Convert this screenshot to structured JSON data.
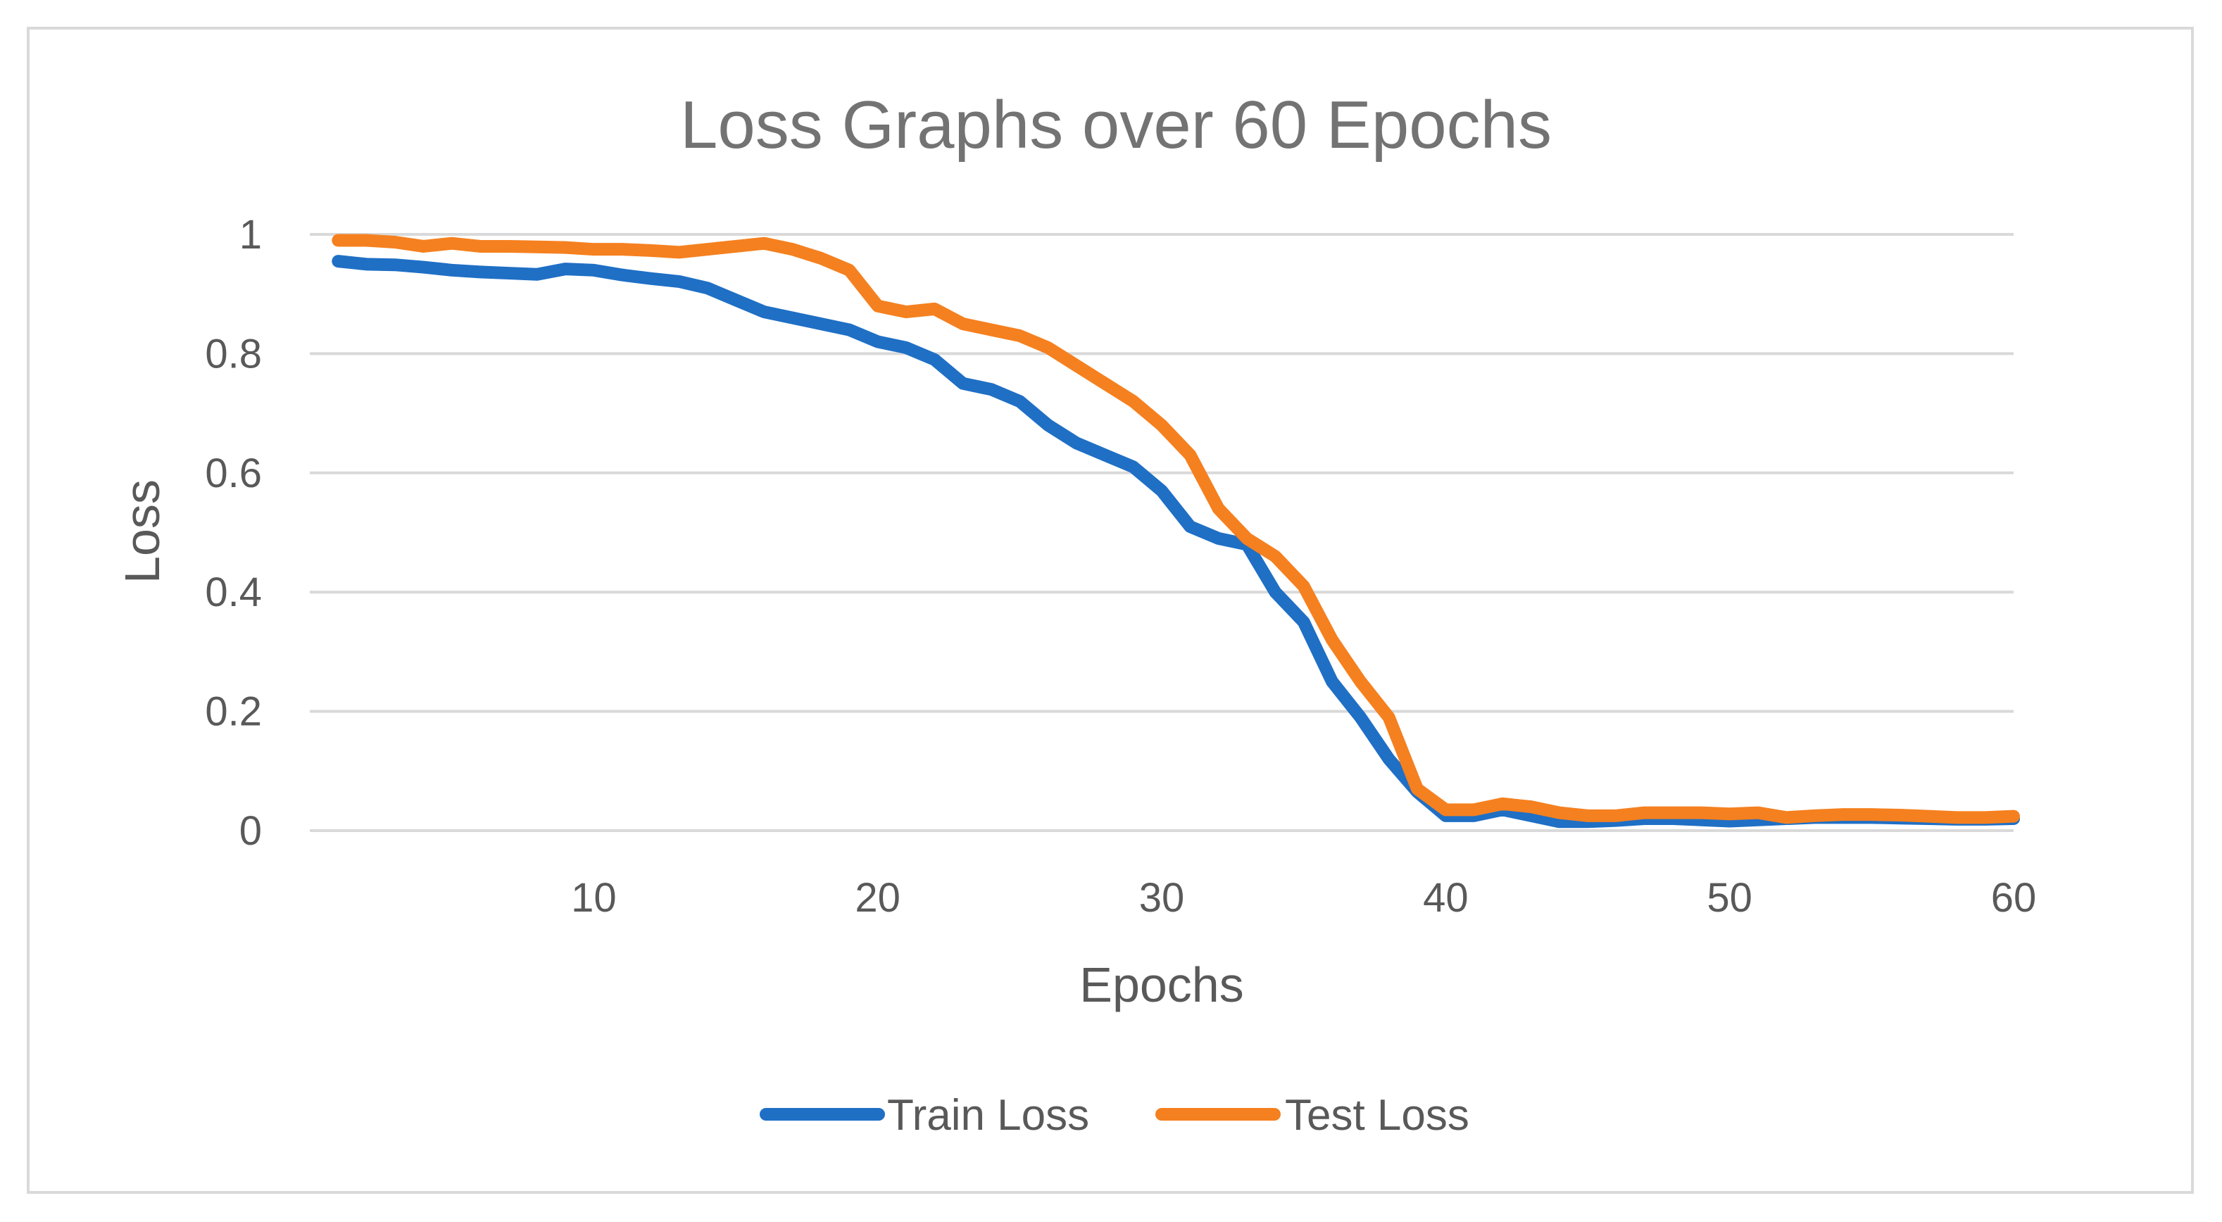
{
  "chart_data": {
    "type": "line",
    "title": "Loss Graphs over 60 Epochs",
    "xlabel": "Epochs",
    "ylabel": "Loss",
    "xlim": [
      0,
      60
    ],
    "ylim": [
      0,
      1
    ],
    "x_ticks": [
      "10",
      "20",
      "30",
      "40",
      "50",
      "60"
    ],
    "y_ticks": [
      "0",
      "0.2",
      "0.4",
      "0.6",
      "0.8",
      "1"
    ],
    "grid": "horizontal",
    "legend_position": "bottom",
    "x": [
      1,
      2,
      3,
      4,
      5,
      6,
      7,
      8,
      9,
      10,
      11,
      12,
      13,
      14,
      15,
      16,
      17,
      18,
      19,
      20,
      21,
      22,
      23,
      24,
      25,
      26,
      27,
      28,
      29,
      30,
      31,
      32,
      33,
      34,
      35,
      36,
      37,
      38,
      39,
      40,
      41,
      42,
      43,
      44,
      45,
      46,
      47,
      48,
      49,
      50,
      51,
      52,
      53,
      54,
      55,
      56,
      57,
      58,
      59,
      60
    ],
    "series": [
      {
        "name": "Train Loss",
        "color": "#1f6fc5",
        "values": [
          0.955,
          0.95,
          0.949,
          0.945,
          0.94,
          0.937,
          0.935,
          0.933,
          0.942,
          0.94,
          0.932,
          0.926,
          0.921,
          0.91,
          0.89,
          0.87,
          0.86,
          0.85,
          0.84,
          0.82,
          0.81,
          0.79,
          0.75,
          0.74,
          0.72,
          0.68,
          0.65,
          0.63,
          0.61,
          0.57,
          0.51,
          0.49,
          0.48,
          0.4,
          0.35,
          0.25,
          0.19,
          0.12,
          0.065,
          0.025,
          0.025,
          0.035,
          0.025,
          0.015,
          0.015,
          0.017,
          0.02,
          0.02,
          0.018,
          0.016,
          0.018,
          0.02,
          0.022,
          0.022,
          0.022,
          0.021,
          0.02,
          0.019,
          0.019,
          0.02
        ]
      },
      {
        "name": "Test Loss",
        "color": "#f5801f",
        "values": [
          0.99,
          0.99,
          0.987,
          0.98,
          0.985,
          0.98,
          0.98,
          0.979,
          0.978,
          0.975,
          0.975,
          0.973,
          0.97,
          0.975,
          0.98,
          0.985,
          0.975,
          0.96,
          0.94,
          0.88,
          0.87,
          0.875,
          0.85,
          0.84,
          0.83,
          0.81,
          0.78,
          0.75,
          0.72,
          0.68,
          0.63,
          0.54,
          0.49,
          0.46,
          0.41,
          0.32,
          0.25,
          0.19,
          0.07,
          0.035,
          0.035,
          0.045,
          0.04,
          0.03,
          0.025,
          0.025,
          0.03,
          0.03,
          0.03,
          0.028,
          0.03,
          0.022,
          0.025,
          0.027,
          0.027,
          0.026,
          0.024,
          0.022,
          0.022,
          0.024
        ]
      }
    ]
  }
}
